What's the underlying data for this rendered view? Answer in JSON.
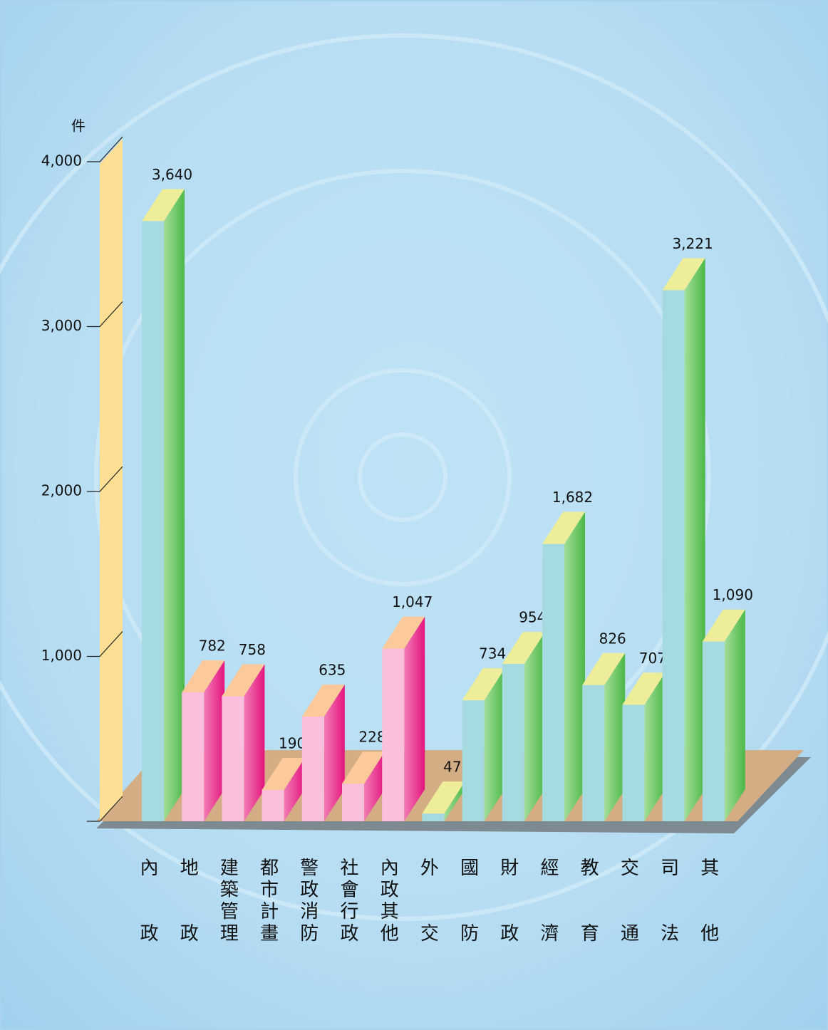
{
  "chart_data": {
    "type": "bar3d",
    "y_label": "件",
    "categories": [
      "內政",
      "地政",
      "建築管理",
      "都市計畫",
      "警政消防",
      "社會行政",
      "內政其他",
      "外交",
      "國防",
      "財政",
      "經濟",
      "教育",
      "交通",
      "司法",
      "其他"
    ],
    "values": [
      3640,
      782,
      758,
      190,
      635,
      228,
      1047,
      47,
      734,
      954,
      1682,
      826,
      707,
      3221,
      1090
    ],
    "value_labels": [
      "3,640",
      "782",
      "758",
      "190",
      "635",
      "228",
      "1,047",
      "47",
      "734",
      "954",
      "1,682",
      "826",
      "707",
      "3,221",
      "1,090"
    ],
    "colors": [
      "#a5dbe0",
      "#f9bfdc",
      "#f9bfdc",
      "#f9bfdc",
      "#f9bfdc",
      "#f9bfdc",
      "#f9bfdc",
      "#a5dbe0",
      "#a5dbe0",
      "#a5dbe0",
      "#a5dbe0",
      "#a5dbe0",
      "#a5dbe0",
      "#a5dbe0",
      "#a5dbe0"
    ],
    "ylim": [
      0,
      4000
    ],
    "yticks": [
      {
        "value": 1000,
        "label": "1,000"
      },
      {
        "value": 2000,
        "label": "2,000"
      },
      {
        "value": 3000,
        "label": "3,000"
      },
      {
        "value": 4000,
        "label": "4,000"
      }
    ]
  }
}
